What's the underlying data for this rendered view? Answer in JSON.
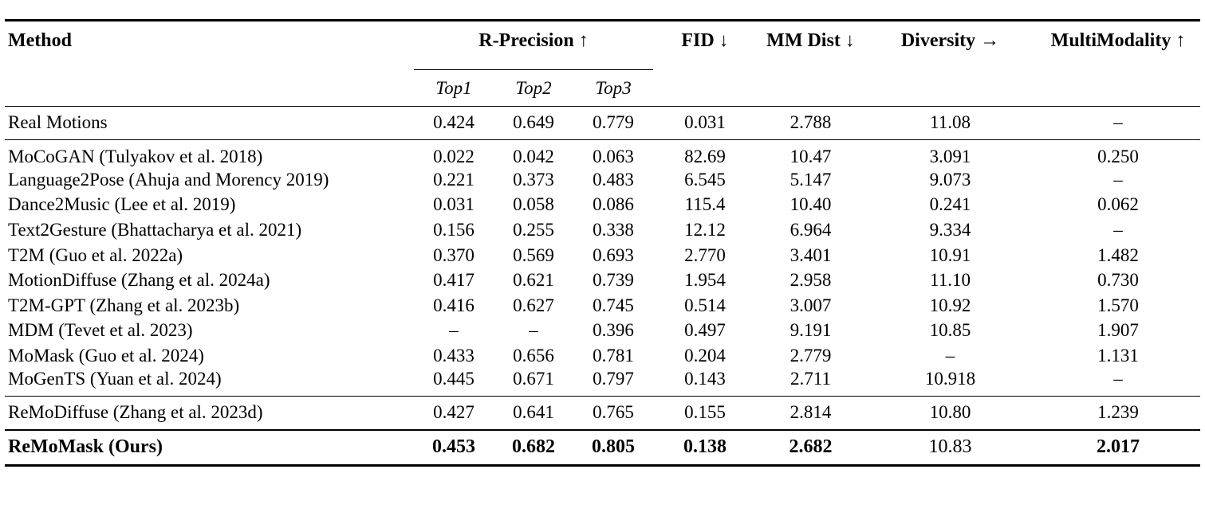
{
  "table": {
    "header": {
      "method": "Method",
      "r_precision": "R-Precision ↑",
      "subcolumns": [
        "Top1",
        "Top2",
        "Top3"
      ],
      "fid": "FID ↓",
      "mm_dist": "MM Dist ↓",
      "diversity": "Diversity →",
      "multimodality": "MultiModality ↑"
    },
    "sections": [
      {
        "rows": [
          {
            "method": "Real Motions",
            "values": [
              "0.424",
              "0.649",
              "0.779",
              "0.031",
              "2.788",
              "11.08",
              "–"
            ]
          }
        ]
      },
      {
        "rows": [
          {
            "method": "MoCoGAN (Tulyakov et al. 2018)",
            "values": [
              "0.022",
              "0.042",
              "0.063",
              "82.69",
              "10.47",
              "3.091",
              "0.250"
            ]
          },
          {
            "method": "Language2Pose (Ahuja and Morency 2019)",
            "values": [
              "0.221",
              "0.373",
              "0.483",
              "6.545",
              "5.147",
              "9.073",
              "–"
            ]
          },
          {
            "method": "Dance2Music (Lee et al. 2019)",
            "values": [
              "0.031",
              "0.058",
              "0.086",
              "115.4",
              "10.40",
              "0.241",
              "0.062"
            ]
          },
          {
            "method": "Text2Gesture (Bhattacharya et al. 2021)",
            "values": [
              "0.156",
              "0.255",
              "0.338",
              "12.12",
              "6.964",
              "9.334",
              "–"
            ]
          },
          {
            "method": "T2M (Guo et al. 2022a)",
            "values": [
              "0.370",
              "0.569",
              "0.693",
              "2.770",
              "3.401",
              "10.91",
              "1.482"
            ]
          },
          {
            "method": "MotionDiffuse (Zhang et al. 2024a)",
            "values": [
              "0.417",
              "0.621",
              "0.739",
              "1.954",
              "2.958",
              "11.10",
              "0.730"
            ]
          },
          {
            "method": "T2M-GPT (Zhang et al. 2023b)",
            "values": [
              "0.416",
              "0.627",
              "0.745",
              "0.514",
              "3.007",
              "10.92",
              "1.570"
            ]
          },
          {
            "method": "MDM (Tevet et al. 2023)",
            "values": [
              "–",
              "–",
              "0.396",
              "0.497",
              "9.191",
              "10.85",
              "1.907"
            ]
          },
          {
            "method": "MoMask (Guo et al. 2024)",
            "values": [
              "0.433",
              "0.656",
              "0.781",
              "0.204",
              "2.779",
              "–",
              "1.131"
            ]
          },
          {
            "method": "MoGenTS (Yuan et al. 2024)",
            "values": [
              "0.445",
              "0.671",
              "0.797",
              "0.143",
              "2.711",
              "10.918",
              "–"
            ]
          }
        ]
      },
      {
        "rows": [
          {
            "method": "ReMoDiffuse (Zhang et al. 2023d)",
            "values": [
              "0.427",
              "0.641",
              "0.765",
              "0.155",
              "2.814",
              "10.80",
              "1.239"
            ]
          }
        ]
      },
      {
        "rows": [
          {
            "method": "ReMoMask (Ours)",
            "bold_method": true,
            "bold_cells": [
              0,
              1,
              2,
              3,
              4,
              6
            ],
            "values": [
              "0.453",
              "0.682",
              "0.805",
              "0.138",
              "2.682",
              "10.83",
              "2.017"
            ]
          }
        ]
      }
    ]
  },
  "colors": {
    "text": "#000000",
    "background": "#ffffff",
    "rule": "#000000"
  }
}
